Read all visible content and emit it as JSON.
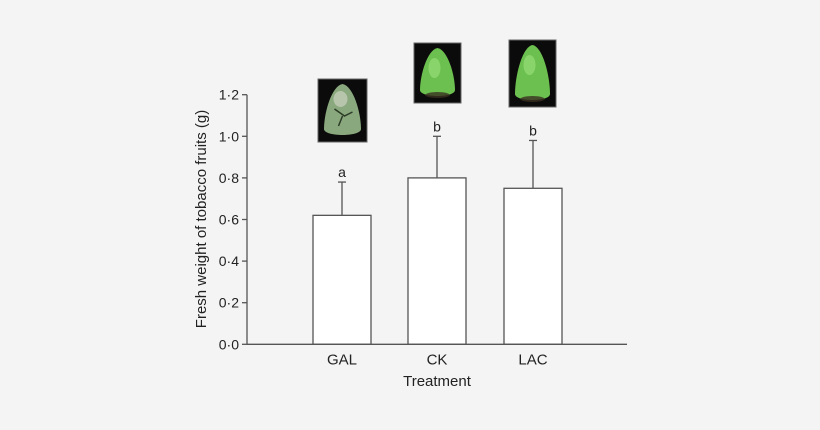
{
  "chart_data": {
    "type": "bar",
    "title": "",
    "xlabel": "Treatment",
    "ylabel": "Fresh weight of tobacco fruits (g)",
    "ylim": [
      0,
      1.2
    ],
    "yticks": [
      "0·0",
      "0·2",
      "0·4",
      "0·6",
      "0·8",
      "1·0",
      "1·2"
    ],
    "ytick_values": [
      0,
      0.2,
      0.4,
      0.6,
      0.8,
      1.0,
      1.2
    ],
    "categories": [
      "GAL",
      "CK",
      "LAC"
    ],
    "values": [
      0.62,
      0.8,
      0.75
    ],
    "error_upper": [
      0.78,
      1.0,
      0.98
    ],
    "significance_letters": [
      "a",
      "b",
      "b"
    ],
    "grid": false,
    "bar_color": "#ffffff",
    "axis_color": "#555555",
    "fruit_photos": [
      "diseased fruit",
      "healthy fruit",
      "healthy fruit"
    ]
  }
}
